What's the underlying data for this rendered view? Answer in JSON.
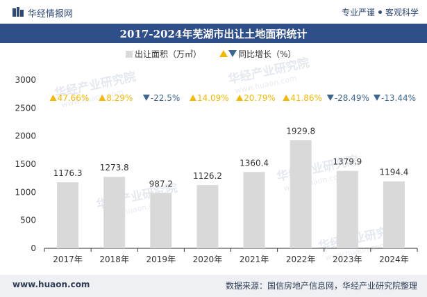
{
  "header": {
    "brand": "华经情报网",
    "tagline_left": "专业严谨",
    "tagline_right": "客观科学"
  },
  "footer": {
    "website": "www.huaon.com",
    "source": "数据来源：国信房地产信息网，华经产业研究院整理"
  },
  "watermark": "华经产业研究院",
  "watermark_url": "www.huaon.com",
  "colors": {
    "bar": "#d9d9d9",
    "triangle": "#f5b800",
    "down": "#3d6590",
    "up_text": "#f5b800",
    "title_bg": "#2e4f8a"
  },
  "chart_data": {
    "type": "bar",
    "title": "2017-2024年芜湖市出让土地面积统计",
    "categories": [
      "2017年",
      "2018年",
      "2019年",
      "2020年",
      "2021年",
      "2022年",
      "2023年",
      "2024年"
    ],
    "series": [
      {
        "name": "出让面积（万㎡）",
        "values": [
          1176.3,
          1273.8,
          987.2,
          1126.2,
          1360.4,
          1929.8,
          1379.9,
          1194.4
        ]
      }
    ],
    "value_labels": [
      "1176.3",
      "1273.8",
      "987.2",
      "1126.2",
      "1360.4",
      "1929.8",
      "1379.9",
      "1194.4"
    ],
    "growth": {
      "name": "同比增长（%）",
      "values": [
        47.66,
        8.29,
        -22.5,
        14.09,
        20.79,
        41.86,
        -28.49,
        -13.44
      ],
      "labels": [
        "47.66%",
        "8.29%",
        "-22.5%",
        "14.09%",
        "20.79%",
        "41.86%",
        "-28.49%",
        "-13.44%"
      ]
    },
    "ylim": [
      0,
      3000
    ],
    "yticks": [
      0,
      500,
      1000,
      1500,
      2000,
      2500,
      3000
    ],
    "ytick_labels": [
      "0",
      "500",
      "1000",
      "1500",
      "2000",
      "2500",
      "3000"
    ],
    "legend_position": "top-center"
  }
}
